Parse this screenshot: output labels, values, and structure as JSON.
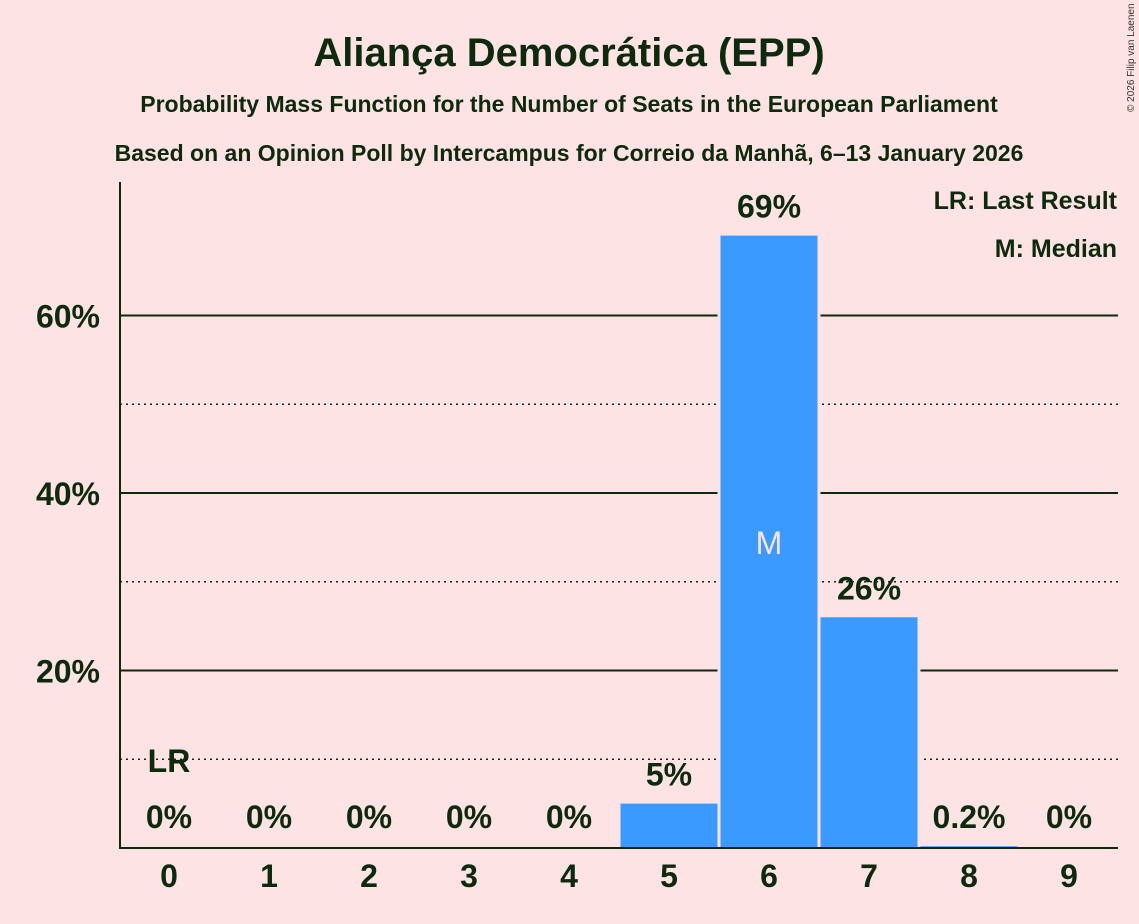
{
  "chart_data": {
    "type": "bar",
    "title": "Aliança Democrática (EPP)",
    "subtitle": "Probability Mass Function for the Number of Seats in the European Parliament",
    "subtitle2": "Based on an Opinion Poll by Intercampus for Correio da Manhã, 6–13 January 2026",
    "copyright": "© 2026 Filip van Laenen",
    "categories": [
      "0",
      "1",
      "2",
      "3",
      "4",
      "5",
      "6",
      "7",
      "8",
      "9"
    ],
    "values": [
      0,
      0,
      0,
      0,
      0,
      5,
      69,
      26,
      0.2,
      0
    ],
    "value_labels": [
      "0%",
      "0%",
      "0%",
      "0%",
      "0%",
      "5%",
      "69%",
      "26%",
      "0.2%",
      "0%"
    ],
    "ylim": [
      0,
      75
    ],
    "major_ticks": [
      20,
      40,
      60
    ],
    "major_tick_labels": [
      "20%",
      "40%",
      "60%"
    ],
    "minor_ticks": [
      10,
      30,
      50
    ],
    "last_result_index": 0,
    "last_result_marker": "LR",
    "median_index": 6,
    "median_marker": "M",
    "legend": [
      "LR: Last Result",
      "M: Median"
    ],
    "bar_color": "#3a9aff",
    "text_color": "#0d2a0d",
    "background": "#fde3e3"
  }
}
